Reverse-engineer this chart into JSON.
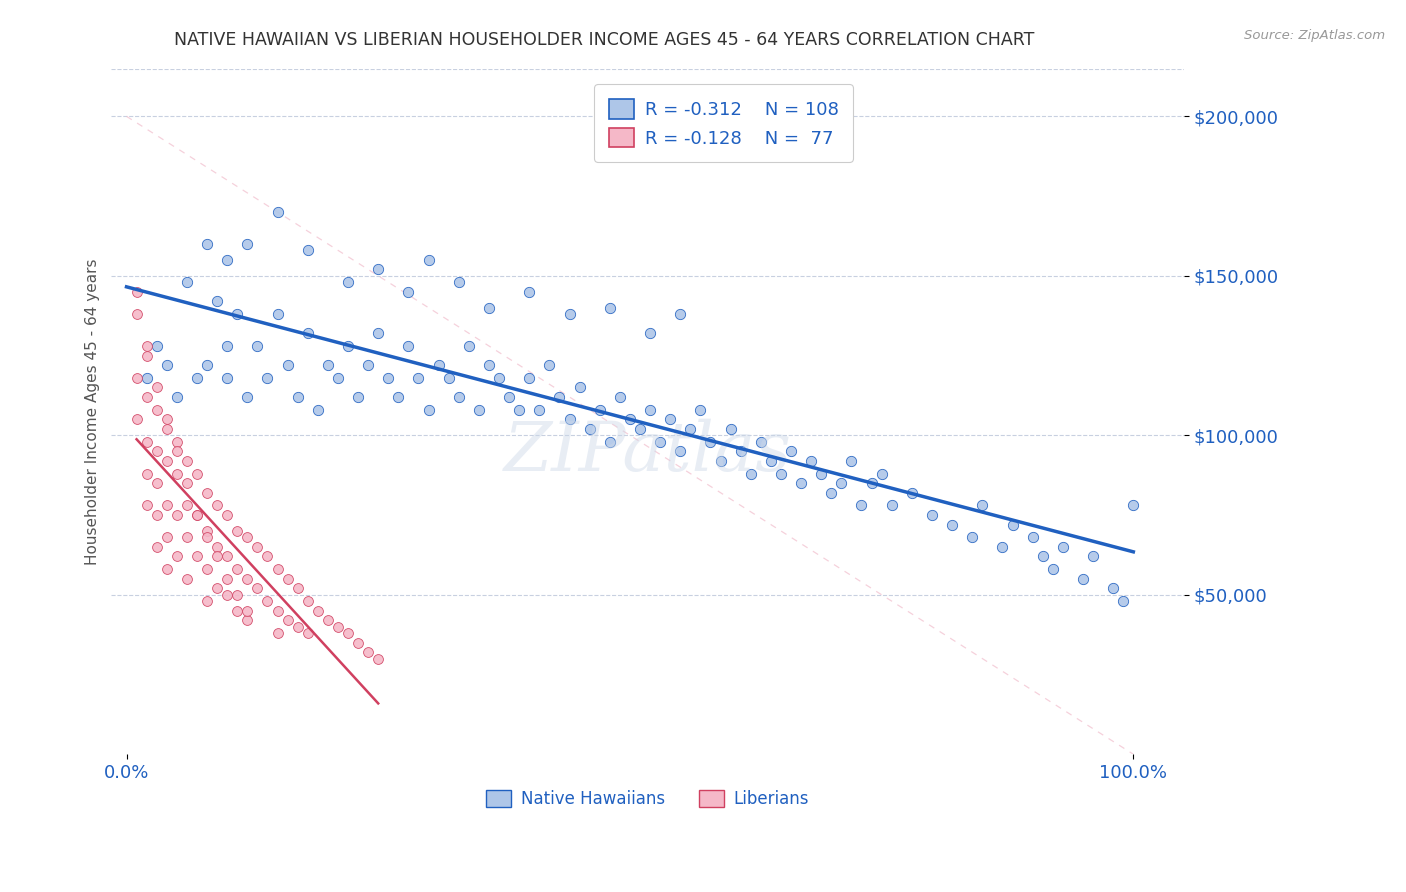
{
  "title": "NATIVE HAWAIIAN VS LIBERIAN HOUSEHOLDER INCOME AGES 45 - 64 YEARS CORRELATION CHART",
  "source": "Source: ZipAtlas.com",
  "ylabel": "Householder Income Ages 45 - 64 years",
  "ytick_values": [
    50000,
    100000,
    150000,
    200000
  ],
  "color_hawaiian": "#aec6e8",
  "color_liberian": "#f5b8c8",
  "color_hawaiian_line": "#2060c0",
  "color_liberian_line": "#d04060",
  "color_diagonal": "#f0b8c8",
  "color_grid": "#c8d0e0",
  "color_text_blue": "#2060c0",
  "color_title": "#333333",
  "background": "#ffffff",
  "title_fontsize": 12.5,
  "hawaiian_x": [
    0.02,
    0.03,
    0.04,
    0.05,
    0.06,
    0.07,
    0.08,
    0.09,
    0.1,
    0.1,
    0.11,
    0.12,
    0.13,
    0.14,
    0.15,
    0.16,
    0.17,
    0.18,
    0.19,
    0.2,
    0.21,
    0.22,
    0.23,
    0.24,
    0.25,
    0.26,
    0.27,
    0.28,
    0.29,
    0.3,
    0.31,
    0.32,
    0.33,
    0.34,
    0.35,
    0.36,
    0.37,
    0.38,
    0.39,
    0.4,
    0.41,
    0.42,
    0.43,
    0.44,
    0.45,
    0.46,
    0.47,
    0.48,
    0.49,
    0.5,
    0.51,
    0.52,
    0.53,
    0.54,
    0.55,
    0.56,
    0.57,
    0.58,
    0.59,
    0.6,
    0.61,
    0.62,
    0.63,
    0.64,
    0.65,
    0.66,
    0.67,
    0.68,
    0.69,
    0.7,
    0.71,
    0.72,
    0.73,
    0.74,
    0.75,
    0.76,
    0.78,
    0.8,
    0.82,
    0.84,
    0.85,
    0.87,
    0.88,
    0.9,
    0.91,
    0.92,
    0.93,
    0.95,
    0.96,
    0.98,
    0.99,
    1.0,
    0.08,
    0.1,
    0.12,
    0.15,
    0.18,
    0.22,
    0.25,
    0.28,
    0.3,
    0.33,
    0.36,
    0.4,
    0.44,
    0.48,
    0.52,
    0.55
  ],
  "hawaiian_y": [
    118000,
    128000,
    122000,
    112000,
    148000,
    118000,
    122000,
    142000,
    128000,
    118000,
    138000,
    112000,
    128000,
    118000,
    138000,
    122000,
    112000,
    132000,
    108000,
    122000,
    118000,
    128000,
    112000,
    122000,
    132000,
    118000,
    112000,
    128000,
    118000,
    108000,
    122000,
    118000,
    112000,
    128000,
    108000,
    122000,
    118000,
    112000,
    108000,
    118000,
    108000,
    122000,
    112000,
    105000,
    115000,
    102000,
    108000,
    98000,
    112000,
    105000,
    102000,
    108000,
    98000,
    105000,
    95000,
    102000,
    108000,
    98000,
    92000,
    102000,
    95000,
    88000,
    98000,
    92000,
    88000,
    95000,
    85000,
    92000,
    88000,
    82000,
    85000,
    92000,
    78000,
    85000,
    88000,
    78000,
    82000,
    75000,
    72000,
    68000,
    78000,
    65000,
    72000,
    68000,
    62000,
    58000,
    65000,
    55000,
    62000,
    52000,
    48000,
    78000,
    160000,
    155000,
    160000,
    170000,
    158000,
    148000,
    152000,
    145000,
    155000,
    148000,
    140000,
    145000,
    138000,
    140000,
    132000,
    138000
  ],
  "liberian_x": [
    0.01,
    0.01,
    0.01,
    0.02,
    0.02,
    0.02,
    0.02,
    0.02,
    0.03,
    0.03,
    0.03,
    0.03,
    0.03,
    0.04,
    0.04,
    0.04,
    0.04,
    0.04,
    0.05,
    0.05,
    0.05,
    0.05,
    0.06,
    0.06,
    0.06,
    0.06,
    0.07,
    0.07,
    0.07,
    0.08,
    0.08,
    0.08,
    0.08,
    0.09,
    0.09,
    0.09,
    0.1,
    0.1,
    0.1,
    0.11,
    0.11,
    0.11,
    0.12,
    0.12,
    0.12,
    0.13,
    0.13,
    0.14,
    0.14,
    0.15,
    0.15,
    0.15,
    0.16,
    0.16,
    0.17,
    0.17,
    0.18,
    0.18,
    0.19,
    0.2,
    0.21,
    0.22,
    0.23,
    0.24,
    0.25,
    0.01,
    0.02,
    0.03,
    0.04,
    0.05,
    0.06,
    0.07,
    0.08,
    0.09,
    0.1,
    0.11,
    0.12
  ],
  "liberian_y": [
    138000,
    118000,
    105000,
    128000,
    112000,
    98000,
    88000,
    78000,
    108000,
    95000,
    85000,
    75000,
    65000,
    102000,
    92000,
    78000,
    68000,
    58000,
    98000,
    88000,
    75000,
    62000,
    92000,
    78000,
    68000,
    55000,
    88000,
    75000,
    62000,
    82000,
    70000,
    58000,
    48000,
    78000,
    65000,
    52000,
    75000,
    62000,
    50000,
    70000,
    58000,
    45000,
    68000,
    55000,
    42000,
    65000,
    52000,
    62000,
    48000,
    58000,
    45000,
    38000,
    55000,
    42000,
    52000,
    40000,
    48000,
    38000,
    45000,
    42000,
    40000,
    38000,
    35000,
    32000,
    30000,
    145000,
    125000,
    115000,
    105000,
    95000,
    85000,
    75000,
    68000,
    62000,
    55000,
    50000,
    45000
  ],
  "ylim": [
    0,
    215000
  ],
  "xlim": [
    -0.015,
    1.05
  ],
  "x_trendline_h_start": 0.0,
  "x_trendline_h_end": 1.0,
  "x_trendline_l_start": 0.01,
  "x_trendline_l_end": 0.25
}
